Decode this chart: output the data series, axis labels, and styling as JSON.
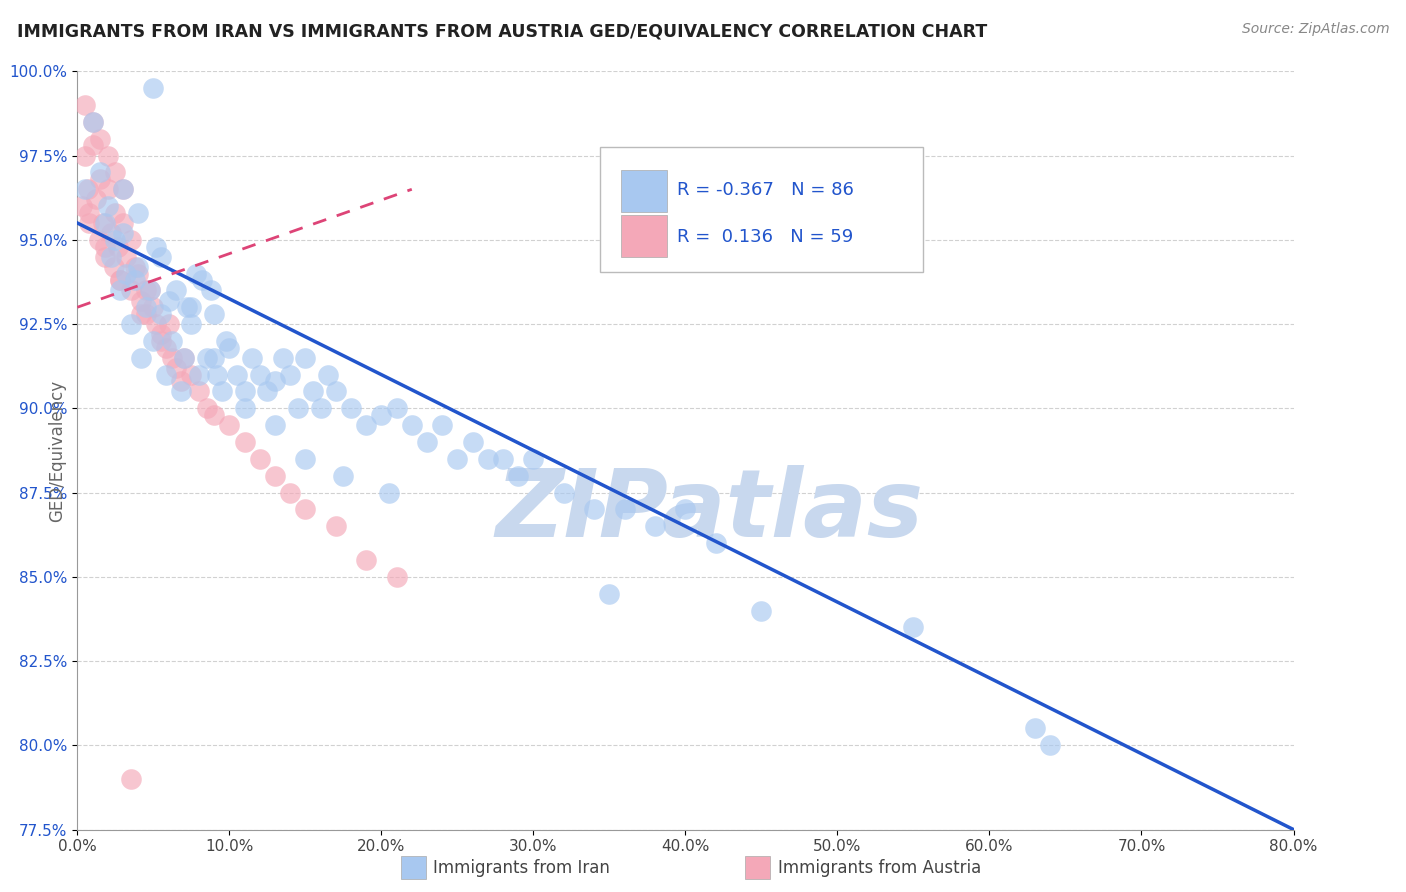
{
  "title": "IMMIGRANTS FROM IRAN VS IMMIGRANTS FROM AUSTRIA GED/EQUIVALENCY CORRELATION CHART",
  "source": "Source: ZipAtlas.com",
  "ylabel": "GED/Equivalency",
  "legend_label_blue": "Immigrants from Iran",
  "legend_label_pink": "Immigrants from Austria",
  "R_blue": -0.367,
  "N_blue": 86,
  "R_pink": 0.136,
  "N_pink": 59,
  "color_blue": "#A8C8F0",
  "color_pink": "#F4A8B8",
  "color_line_blue": "#2255CC",
  "color_line_pink": "#DD4477",
  "color_watermark": "#C8D8EE",
  "x_min": 0.0,
  "x_max": 80.0,
  "y_min": 77.5,
  "y_max": 100.0,
  "x_ticks": [
    0.0,
    10.0,
    20.0,
    30.0,
    40.0,
    50.0,
    60.0,
    70.0,
    80.0
  ],
  "y_ticks": [
    77.5,
    80.0,
    82.5,
    85.0,
    87.5,
    90.0,
    92.5,
    95.0,
    97.5,
    100.0
  ],
  "blue_scatter_x": [
    0.5,
    1.0,
    1.5,
    1.8,
    2.0,
    2.2,
    2.5,
    2.8,
    3.0,
    3.2,
    3.5,
    3.8,
    4.0,
    4.2,
    4.5,
    4.8,
    5.0,
    5.2,
    5.5,
    5.8,
    6.0,
    6.2,
    6.5,
    6.8,
    7.0,
    7.2,
    7.5,
    7.8,
    8.0,
    8.2,
    8.5,
    8.8,
    9.0,
    9.2,
    9.5,
    9.8,
    10.0,
    10.5,
    11.0,
    11.5,
    12.0,
    12.5,
    13.0,
    13.5,
    14.0,
    14.5,
    15.0,
    15.5,
    16.0,
    16.5,
    17.0,
    18.0,
    19.0,
    20.0,
    21.0,
    22.0,
    23.0,
    24.0,
    25.0,
    26.0,
    27.0,
    28.0,
    29.0,
    30.0,
    32.0,
    34.0,
    36.0,
    38.0,
    40.0,
    42.0,
    3.0,
    4.0,
    5.5,
    7.5,
    9.0,
    11.0,
    13.0,
    15.0,
    17.5,
    20.5,
    35.0,
    45.0,
    55.0,
    63.0,
    64.0,
    5.0
  ],
  "blue_scatter_y": [
    96.5,
    98.5,
    97.0,
    95.5,
    96.0,
    94.5,
    95.0,
    93.5,
    95.2,
    94.0,
    92.5,
    93.8,
    94.2,
    91.5,
    93.0,
    93.5,
    92.0,
    94.8,
    92.8,
    91.0,
    93.2,
    92.0,
    93.5,
    90.5,
    91.5,
    93.0,
    92.5,
    94.0,
    91.0,
    93.8,
    91.5,
    93.5,
    92.8,
    91.0,
    90.5,
    92.0,
    91.8,
    91.0,
    90.5,
    91.5,
    91.0,
    90.5,
    90.8,
    91.5,
    91.0,
    90.0,
    91.5,
    90.5,
    90.0,
    91.0,
    90.5,
    90.0,
    89.5,
    89.8,
    90.0,
    89.5,
    89.0,
    89.5,
    88.5,
    89.0,
    88.5,
    88.5,
    88.0,
    88.5,
    87.5,
    87.0,
    87.0,
    86.5,
    87.0,
    86.0,
    96.5,
    95.8,
    94.5,
    93.0,
    91.5,
    90.0,
    89.5,
    88.5,
    88.0,
    87.5,
    84.5,
    84.0,
    83.5,
    80.5,
    80.0,
    99.5
  ],
  "pink_scatter_x": [
    0.3,
    0.5,
    0.7,
    0.8,
    1.0,
    1.2,
    1.4,
    1.5,
    1.7,
    1.8,
    2.0,
    2.2,
    2.4,
    2.5,
    2.7,
    2.8,
    3.0,
    3.2,
    3.5,
    3.8,
    4.0,
    4.2,
    4.5,
    4.8,
    5.0,
    5.2,
    5.5,
    5.8,
    6.0,
    6.2,
    6.5,
    6.8,
    7.0,
    7.5,
    8.0,
    8.5,
    9.0,
    10.0,
    11.0,
    12.0,
    13.0,
    14.0,
    15.0,
    17.0,
    19.0,
    21.0,
    0.5,
    1.0,
    1.5,
    2.0,
    2.5,
    3.0,
    3.5,
    4.5,
    5.5,
    0.8,
    1.8,
    2.8,
    4.2
  ],
  "pink_scatter_y": [
    96.0,
    97.5,
    96.5,
    95.5,
    97.8,
    96.2,
    95.0,
    96.8,
    95.5,
    94.5,
    96.5,
    95.2,
    94.2,
    95.8,
    94.8,
    93.8,
    95.5,
    94.5,
    93.5,
    94.2,
    94.0,
    93.2,
    92.8,
    93.5,
    93.0,
    92.5,
    92.2,
    91.8,
    92.5,
    91.5,
    91.2,
    90.8,
    91.5,
    91.0,
    90.5,
    90.0,
    89.8,
    89.5,
    89.0,
    88.5,
    88.0,
    87.5,
    87.0,
    86.5,
    85.5,
    85.0,
    99.0,
    98.5,
    98.0,
    97.5,
    97.0,
    96.5,
    95.0,
    93.5,
    92.0,
    95.8,
    94.8,
    93.8,
    92.8
  ],
  "pink_outlier_x": [
    3.5
  ],
  "pink_outlier_y": [
    79.0
  ],
  "blue_line_x0": 0.0,
  "blue_line_y0": 95.5,
  "blue_line_x1": 80.0,
  "blue_line_y1": 77.5,
  "pink_line_x0": 0.0,
  "pink_line_y0": 93.0,
  "pink_line_x1": 22.0,
  "pink_line_y1": 96.5
}
